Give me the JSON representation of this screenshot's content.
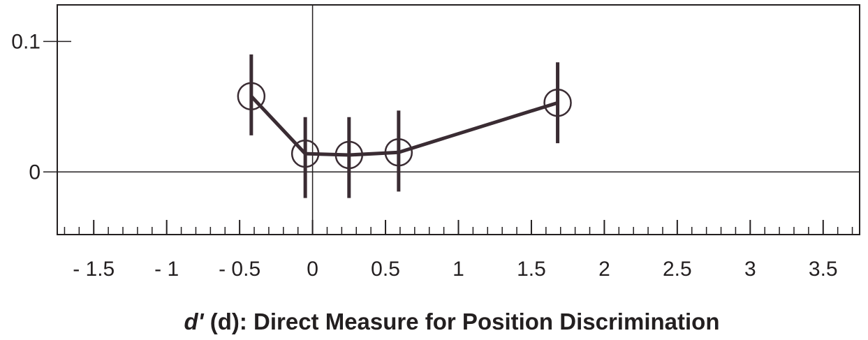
{
  "chart_data": {
    "type": "line",
    "title": "",
    "xlabel_italic": "d'",
    "xlabel_rest": " (d): Direct Measure for Position Discrimination",
    "ylabel": "",
    "xlim": [
      -1.75,
      3.75
    ],
    "ylim": [
      -0.048,
      0.128
    ],
    "x_ticks": [
      -1.5,
      -1,
      -0.5,
      0,
      0.5,
      1,
      1.5,
      2,
      2.5,
      3,
      3.5
    ],
    "x_tick_labels": [
      "- 1.5",
      "- 1",
      "- 0.5",
      "0",
      "0.5",
      "1",
      "1.5",
      "2",
      "2.5",
      "3",
      "3.5"
    ],
    "y_ticks": [
      0,
      0.1
    ],
    "y_tick_labels": [
      "0",
      "0.1"
    ],
    "reference_lines": {
      "x": 0,
      "y": 0
    },
    "grid": false,
    "series": [
      {
        "x": [
          -0.42,
          -0.05,
          0.25,
          0.59,
          1.68
        ],
        "y": [
          0.058,
          0.014,
          0.013,
          0.015,
          0.053
        ],
        "err_low": [
          0.028,
          -0.02,
          -0.02,
          -0.015,
          0.022
        ],
        "err_high": [
          0.09,
          0.042,
          0.042,
          0.047,
          0.084
        ]
      }
    ],
    "colors": {
      "ink": "#231f20",
      "line": "#3a2c33"
    }
  }
}
